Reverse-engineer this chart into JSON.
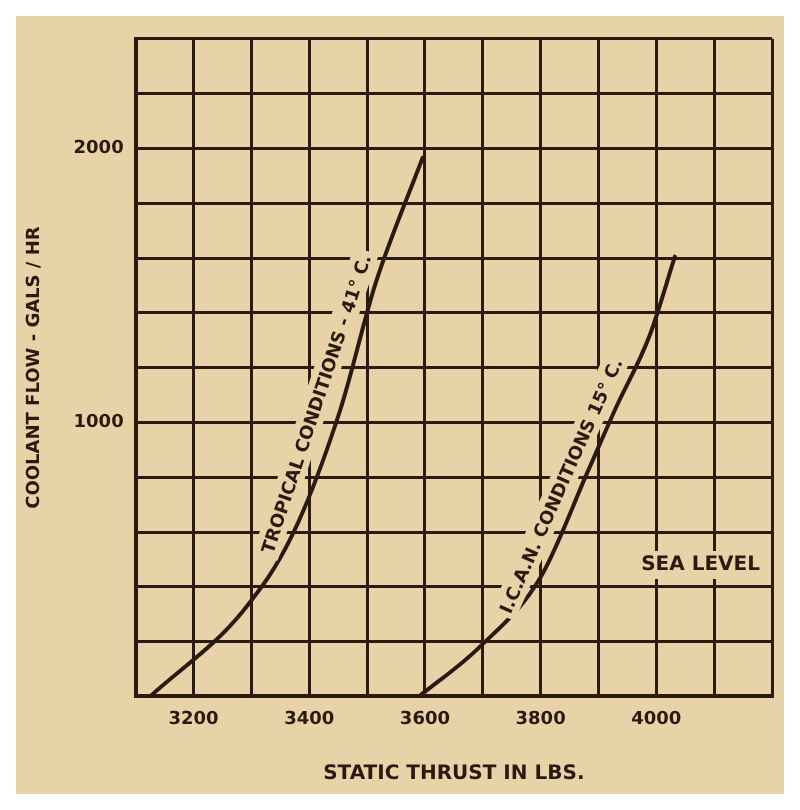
{
  "chart_data": {
    "type": "line",
    "xlabel": "STATIC THRUST IN LBS.",
    "ylabel": "COOLANT FLOW - GALS / HR",
    "series": [
      {
        "name": "TROPICAL CONDITIONS - 41° C.",
        "color": "#2a1a10",
        "x": [
          3125,
          3286,
          3371,
          3454,
          3514,
          3596
        ],
        "values": [
          0,
          313,
          590,
          1048,
          1503,
          1966
        ]
      },
      {
        "name": "I.C.A.N. CONDITIONS 15° C.",
        "color": "#2a1a10",
        "x": [
          3590,
          3693,
          3800,
          3882,
          3929,
          3989,
          4032
        ],
        "values": [
          0,
          177,
          435,
          823,
          1048,
          1320,
          1605
        ]
      }
    ],
    "xlim": [
      3100,
      4200
    ],
    "xticks": [
      {
        "value": 3100,
        "label": null
      },
      3200,
      {
        "value": 3300,
        "label": null
      },
      3400,
      {
        "value": 3500,
        "label": null
      },
      3600,
      {
        "value": 3700,
        "label": null
      },
      3800,
      {
        "value": 3900,
        "label": null
      },
      4000,
      {
        "value": 4100,
        "label": null
      },
      {
        "value": 4200,
        "label": null
      }
    ],
    "ylim": [
      0,
      2400
    ],
    "yticks": [
      {
        "value": 0,
        "label": null
      },
      {
        "value": 200,
        "label": null
      },
      {
        "value": 400,
        "label": null
      },
      {
        "value": 600,
        "label": null
      },
      {
        "value": 800,
        "label": null
      },
      1000,
      {
        "value": 1200,
        "label": null
      },
      {
        "value": 1400,
        "label": null
      },
      {
        "value": 1600,
        "label": null
      },
      {
        "value": 1800,
        "label": null
      },
      2000,
      {
        "value": 2200,
        "label": null
      },
      {
        "value": 2400,
        "label": null
      }
    ],
    "grid": true,
    "legend": false,
    "marker": "none",
    "line_style": "solid",
    "annotations": [
      "SEA LEVEL"
    ]
  }
}
